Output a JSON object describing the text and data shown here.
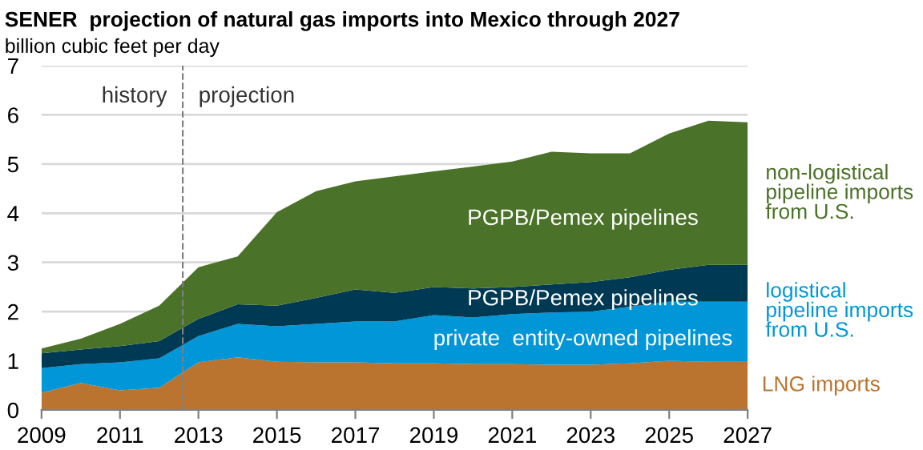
{
  "chart_data": {
    "type": "area",
    "stacked": true,
    "title": "SENER  projection of natural gas imports into Mexico through 2027",
    "subtitle": "billion cubic feet per day",
    "x": [
      2009,
      2010,
      2011,
      2012,
      2013,
      2014,
      2015,
      2016,
      2017,
      2018,
      2019,
      2020,
      2021,
      2022,
      2023,
      2024,
      2025,
      2026,
      2027
    ],
    "series": [
      {
        "name": "LNG imports",
        "color": "#bb7430",
        "values": [
          0.35,
          0.55,
          0.4,
          0.45,
          0.97,
          1.07,
          0.98,
          0.97,
          0.97,
          0.95,
          0.95,
          0.93,
          0.93,
          0.92,
          0.92,
          0.95,
          1.0,
          0.98,
          0.98
        ]
      },
      {
        "name": "private  entity-owned pipelines",
        "color": "#0096d7",
        "values": [
          0.5,
          0.38,
          0.57,
          0.6,
          0.53,
          0.68,
          0.72,
          0.78,
          0.83,
          0.85,
          0.98,
          0.95,
          1.02,
          1.06,
          1.08,
          1.15,
          1.2,
          1.22,
          1.22
        ]
      },
      {
        "name": "PGPB/Pemex pipelines",
        "color": "#003953",
        "values": [
          0.3,
          0.3,
          0.33,
          0.35,
          0.35,
          0.4,
          0.42,
          0.53,
          0.65,
          0.58,
          0.57,
          0.59,
          0.55,
          0.57,
          0.6,
          0.6,
          0.65,
          0.75,
          0.75
        ]
      },
      {
        "name": "PGPB/Pemex pipelines",
        "color": "#4a7228",
        "values": [
          0.1,
          0.22,
          0.45,
          0.72,
          1.05,
          0.97,
          1.9,
          2.17,
          2.2,
          2.37,
          2.35,
          2.48,
          2.55,
          2.7,
          2.62,
          2.52,
          2.77,
          2.93,
          2.9
        ]
      }
    ],
    "xlim": [
      2009,
      2027
    ],
    "xticks": [
      2009,
      2011,
      2013,
      2015,
      2017,
      2019,
      2021,
      2023,
      2025,
      2027
    ],
    "ylim": [
      0,
      7
    ],
    "yticks": [
      0,
      1,
      2,
      3,
      4,
      5,
      6,
      7
    ],
    "grid": "y",
    "legend": false,
    "ref_lines": [
      {
        "axis": "x",
        "value": 2012.6,
        "color": "#808080",
        "line_style": "dashed"
      }
    ],
    "annotations": [
      "history",
      "projection",
      {
        "text": "non-logistical\npipeline imports\nfrom U.S.",
        "x": 2027,
        "y": 4.4
      },
      {
        "text": "logistical\npipeline imports\nfrom U.S.",
        "x": 2027,
        "y": 2.0
      }
    ]
  }
}
